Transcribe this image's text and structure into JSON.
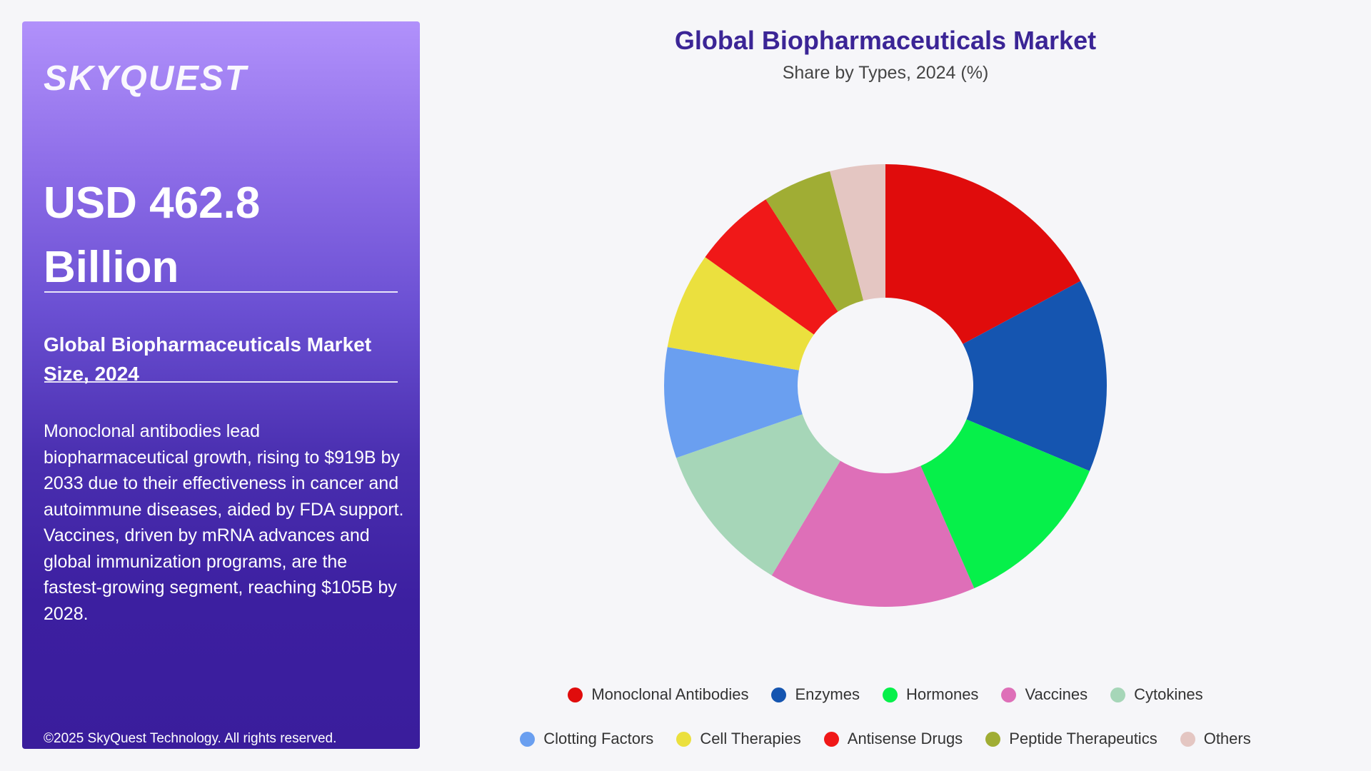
{
  "brand": {
    "logo": "SKYQUEST"
  },
  "panel": {
    "value_line1": "USD 462.8",
    "value_line2": "Billion",
    "subtitle_line1": "Global Biopharmaceuticals Market",
    "subtitle_line2": "Size, 2024",
    "description": "Monoclonal antibodies lead biopharmaceutical growth, rising to $919B by 2033 due to their effectiveness in cancer and autoimmune diseases, aided by FDA support. Vaccines, driven by mRNA advances and global immunization programs, are the fastest-growing segment, reaching $105B by 2028.",
    "copyright": "©2025 SkyQuest Technology. All rights reserved."
  },
  "chart_data": {
    "type": "pie",
    "variant": "donut",
    "title": "Global Biopharmaceuticals Market",
    "subtitle": "Share by Types, 2024 (%)",
    "legend_position": "bottom",
    "categories": [
      "Monoclonal Antibodies",
      "Enzymes",
      "Hormones",
      "Vaccines",
      "Cytokines",
      "Clotting Factors",
      "Cell Therapies",
      "Antisense Drugs",
      "Peptide Therapeutics",
      "Others"
    ],
    "values": [
      17,
      14,
      12,
      15,
      11,
      8,
      7,
      6,
      5,
      4
    ],
    "colors": [
      "#e00c0c",
      "#1555b0",
      "#06f04a",
      "#de6fb8",
      "#a6d6b8",
      "#6a9ff0",
      "#ebe03e",
      "#f01818",
      "#a0ad34",
      "#e4c6c2"
    ]
  }
}
